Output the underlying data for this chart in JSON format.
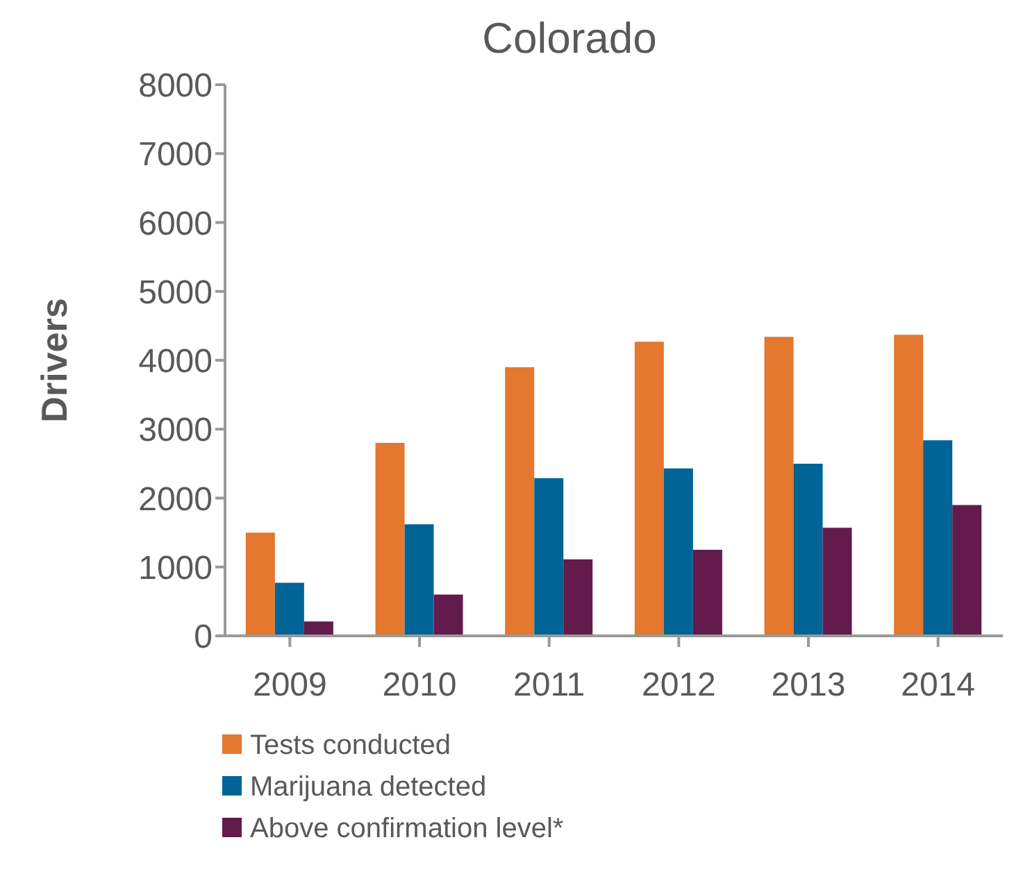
{
  "chart_data": {
    "type": "bar",
    "title": "Colorado",
    "ylabel": "Drivers",
    "categories": [
      "2009",
      "2010",
      "2011",
      "2012",
      "2013",
      "2014"
    ],
    "series": [
      {
        "name": "Tests conducted",
        "color": "#e3782e",
        "values": [
          1500,
          2800,
          3900,
          4270,
          4340,
          4370
        ]
      },
      {
        "name": "Marijuana detected",
        "color": "#006496",
        "values": [
          770,
          1620,
          2290,
          2430,
          2500,
          2840
        ]
      },
      {
        "name": "Above confirmation level*",
        "color": "#621b4c",
        "values": [
          210,
          600,
          1110,
          1250,
          1570,
          1900
        ]
      }
    ],
    "ylim": [
      0,
      8000
    ],
    "yticks": [
      0,
      1000,
      2000,
      3000,
      4000,
      5000,
      6000,
      7000,
      8000
    ],
    "grid": false,
    "legend": "bottom left"
  }
}
